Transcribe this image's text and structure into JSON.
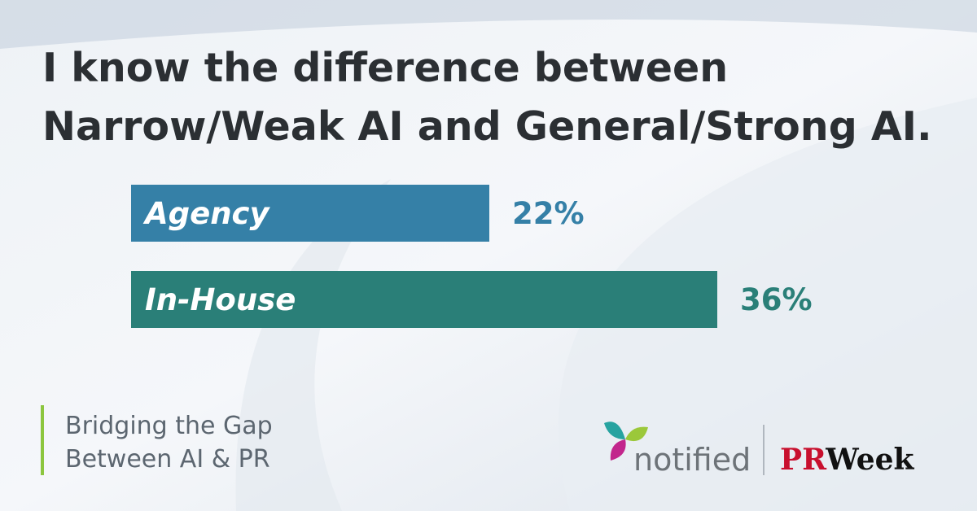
{
  "chart_data": {
    "type": "bar",
    "orientation": "horizontal",
    "title": [
      "I know the difference between",
      "Narrow/Weak AI and General/Strong AI."
    ],
    "categories": [
      "Agency",
      "In-House"
    ],
    "values": [
      22,
      36
    ],
    "value_labels": [
      "22%",
      "36%"
    ],
    "colors": [
      "#3580a7",
      "#2a7f78"
    ]
  },
  "footer": {
    "subtitle": [
      "Bridging the Gap",
      "Between AI & PR"
    ],
    "logos": {
      "notified": "notified",
      "prweek_pr": "PR",
      "prweek_week": "Week"
    }
  }
}
